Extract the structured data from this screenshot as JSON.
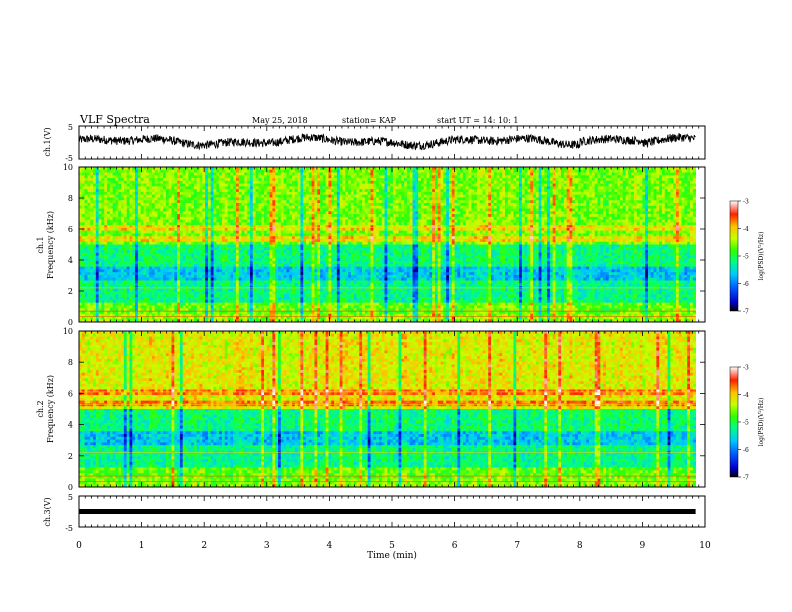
{
  "header": {
    "title": "VLF Spectra",
    "date": "May 25, 2018",
    "station": "station= KAP",
    "start_ut": "start  UT =   14: 10: 1"
  },
  "chart_data": [
    {
      "type": "line",
      "panel": "ch1-waveform",
      "ylabel": "ch.1(V)",
      "ylim": [
        -5,
        5
      ],
      "yticks": [
        "5",
        "-5"
      ],
      "xlim": [
        0,
        10
      ],
      "data_extent_min": [
        0,
        9.85
      ],
      "mean_offset": 0.3,
      "description_color": "#000000"
    },
    {
      "type": "heatmap",
      "panel": "ch1-spectrogram",
      "ylabel_top": "ch.1",
      "ylabel": "Frequency (kHz)",
      "ylim": [
        0,
        10
      ],
      "yticks": [
        "0",
        "2",
        "4",
        "6",
        "8",
        "10"
      ],
      "xlim": [
        0,
        10
      ],
      "colorbar": {
        "label": "log(PSD)(V²/Hz)",
        "range": [
          -7,
          -3
        ],
        "ticks": [
          "-3",
          "-4",
          "-5",
          "-6",
          "-7"
        ]
      }
    },
    {
      "type": "heatmap",
      "panel": "ch2-spectrogram",
      "ylabel_top": "ch.2",
      "ylabel": "Frequency (kHz)",
      "ylim": [
        0,
        10
      ],
      "yticks": [
        "0",
        "2",
        "4",
        "6",
        "8",
        "10"
      ],
      "xlim": [
        0,
        10
      ],
      "colorbar": {
        "label": "log(PSD)(V²/Hz)",
        "range": [
          -7,
          -3
        ],
        "ticks": [
          "-3",
          "-4",
          "-5",
          "-6",
          "-7"
        ]
      }
    },
    {
      "type": "line",
      "panel": "ch3-waveform",
      "ylabel": "ch.3(V)",
      "ylim": [
        -5,
        5
      ],
      "yticks": [
        "5",
        "-5"
      ],
      "xlim": [
        0,
        10
      ],
      "constant_value": 0,
      "data_extent_min": [
        0,
        9.85
      ]
    }
  ],
  "xaxis": {
    "label": "Time (min)",
    "ticks": [
      "0",
      "1",
      "2",
      "3",
      "4",
      "5",
      "6",
      "7",
      "8",
      "9",
      "10"
    ]
  }
}
